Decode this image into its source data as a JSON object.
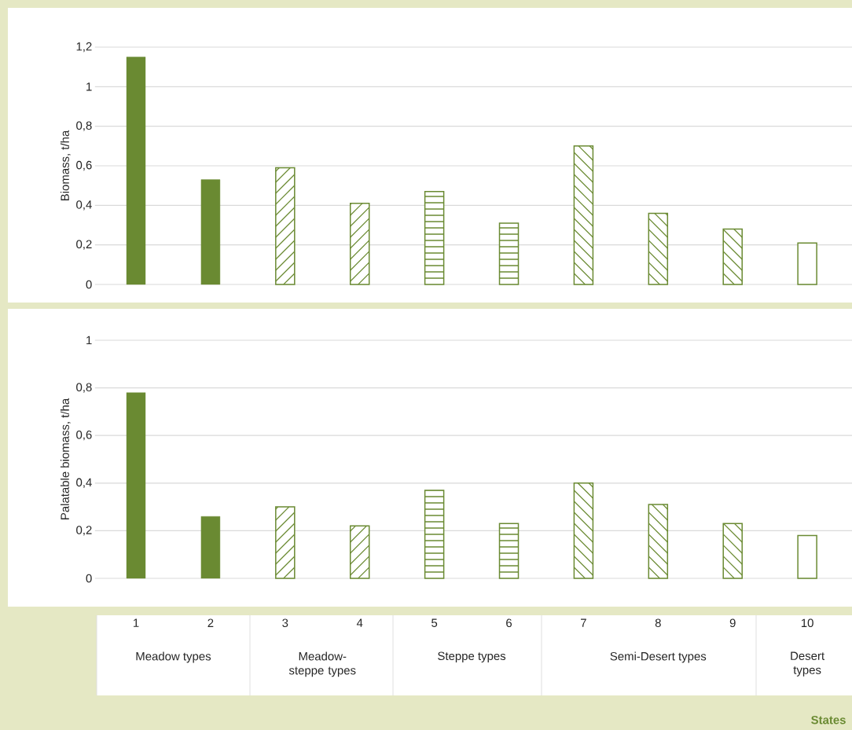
{
  "chart_data": [
    {
      "type": "bar",
      "categories": [
        "1",
        "2",
        "3",
        "4",
        "5",
        "6",
        "7",
        "8",
        "9",
        "10"
      ],
      "values": [
        1.15,
        0.53,
        0.59,
        0.41,
        0.47,
        0.31,
        0.7,
        0.36,
        0.28,
        0.21
      ],
      "color": "#6a8a32",
      "ylabel": "Biomass, t/ha",
      "ylim": [
        0,
        1.2
      ],
      "yticks": [
        0,
        {
          "value": 0.2,
          "label": "0,2"
        },
        {
          "value": 0.4,
          "label": "0,4"
        },
        {
          "value": 0.6,
          "label": "0,6"
        },
        {
          "value": 0.8,
          "label": "0,8"
        },
        1,
        {
          "value": 1.2,
          "label": "1,2"
        }
      ],
      "grid": "y",
      "tick_labels": "y"
    },
    {
      "type": "bar",
      "categories": [
        "1",
        "2",
        "3",
        "4",
        "5",
        "6",
        "7",
        "8",
        "9",
        "10"
      ],
      "values": [
        0.78,
        0.26,
        0.3,
        0.22,
        0.37,
        0.23,
        0.4,
        0.31,
        0.23,
        0.18
      ],
      "color": "#6a8a32",
      "ylabel": "Palatable biomass, t/ha",
      "ylim": [
        0,
        1
      ],
      "yticks": [
        0,
        {
          "value": 0.2,
          "label": "0,2"
        },
        {
          "value": 0.4,
          "label": "0,4"
        },
        {
          "value": 0.6,
          "label": "0,6"
        },
        {
          "value": 0.8,
          "label": "0,8"
        },
        1
      ],
      "grid": "y",
      "annotations": [
        "Meadow types",
        "Meadow-steppe types",
        "Steppe types",
        "Semi-Desert types",
        "Desert types",
        "States"
      ]
    }
  ]
}
